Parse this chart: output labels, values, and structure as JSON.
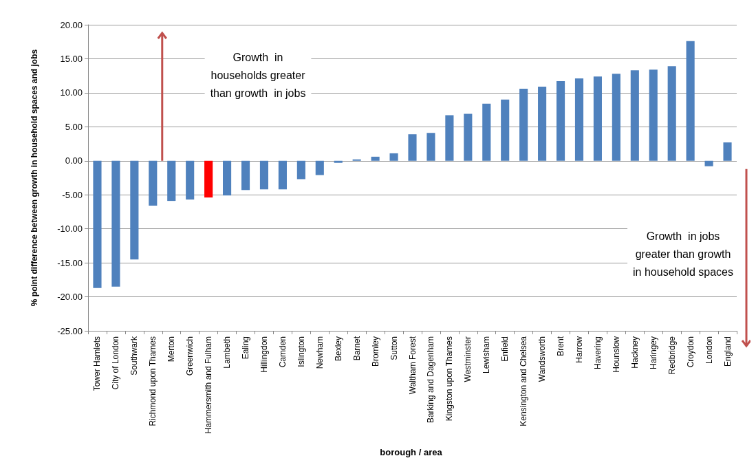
{
  "chart_data": {
    "type": "bar",
    "xlabel": "borough / area",
    "ylabel": "% point difference between growth in household spaces and jobs",
    "categories": [
      "Tower Hamlets",
      "City of London",
      "Southwark",
      "Richmond upon Thames",
      "Merton",
      "Greenwich",
      "Hammersmith and Fulham",
      "Lambeth",
      "Ealing",
      "Hillingdon",
      "Camden",
      "Islington",
      "Newham",
      "Bexley",
      "Barnet",
      "Bromley",
      "Sutton",
      "Waltham Forest",
      "Barking and Dagenham",
      "Kingston upon Thames",
      "Westminster",
      "Lewisham",
      "Enfield",
      "Kensington and Chelsea",
      "Wandsworth",
      "Brent",
      "Harrow",
      "Havering",
      "Hounslow",
      "Hackney",
      "Haringey",
      "Redbridge",
      "Croydon",
      "London",
      "England"
    ],
    "values": [
      -18.7,
      -18.5,
      -14.5,
      -6.6,
      -5.9,
      -5.7,
      -5.4,
      -5.1,
      -4.3,
      -4.2,
      -4.2,
      -2.7,
      -2.1,
      -0.3,
      0.2,
      0.6,
      1.1,
      3.9,
      4.1,
      6.7,
      6.9,
      8.4,
      9.0,
      10.6,
      10.9,
      11.7,
      12.1,
      12.4,
      12.8,
      13.3,
      13.4,
      13.9,
      17.6,
      -0.8,
      2.7
    ],
    "colors": [
      "#4f81bd",
      "#4f81bd",
      "#4f81bd",
      "#4f81bd",
      "#4f81bd",
      "#4f81bd",
      "#ff0000",
      "#4f81bd",
      "#4f81bd",
      "#4f81bd",
      "#4f81bd",
      "#4f81bd",
      "#4f81bd",
      "#4f81bd",
      "#4f81bd",
      "#4f81bd",
      "#4f81bd",
      "#4f81bd",
      "#4f81bd",
      "#4f81bd",
      "#4f81bd",
      "#4f81bd",
      "#4f81bd",
      "#4f81bd",
      "#4f81bd",
      "#4f81bd",
      "#4f81bd",
      "#4f81bd",
      "#4f81bd",
      "#4f81bd",
      "#4f81bd",
      "#4f81bd",
      "#4f81bd",
      "#4f81bd",
      "#4f81bd"
    ],
    "ylim": [
      -25,
      20
    ],
    "yticks": [
      {
        "value": -25,
        "label": "-25.00"
      },
      {
        "value": -20,
        "label": "-20.00"
      },
      {
        "value": -15,
        "label": "-15.00"
      },
      {
        "value": -10,
        "label": "-10.00"
      },
      {
        "value": -5,
        "label": "-5.00"
      },
      {
        "value": 0,
        "label": "0.00"
      },
      {
        "value": 5,
        "label": "5.00"
      },
      {
        "value": 10,
        "label": "10.00"
      },
      {
        "value": 15,
        "label": "15.00"
      },
      {
        "value": 20,
        "label": "20.00"
      }
    ],
    "grid": "y",
    "annotations": [
      "Growth  in\nhouseholds greater\nthan growth  in jobs",
      "Growth  in jobs\ngreater than growth\nin household spaces"
    ]
  }
}
